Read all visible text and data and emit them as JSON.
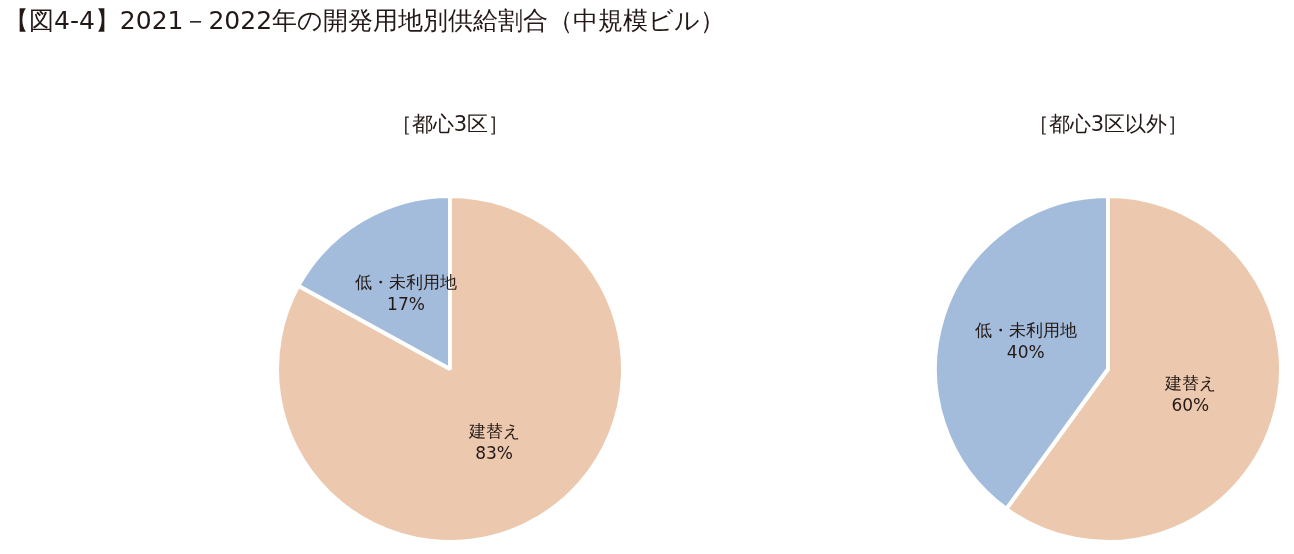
{
  "chart_data": [
    {
      "type": "pie",
      "title": "【図4-4】2021－2022年の開発用地別供給割合（中規模ビル）",
      "subtitle": "［都心3区］",
      "categories": [
        "建替え",
        "低・未利用地"
      ],
      "values": [
        83,
        17
      ],
      "value_labels": [
        "83%",
        "17%"
      ],
      "colors": [
        "#ecc9ae",
        "#a3bcdb"
      ],
      "legend": false
    },
    {
      "type": "pie",
      "subtitle": "［都心3区以外］",
      "categories": [
        "建替え",
        "低・未利用地"
      ],
      "values": [
        60,
        40
      ],
      "value_labels": [
        "60%",
        "40%"
      ],
      "colors": [
        "#ecc9ae",
        "#a3bcdb"
      ],
      "legend": false
    }
  ]
}
